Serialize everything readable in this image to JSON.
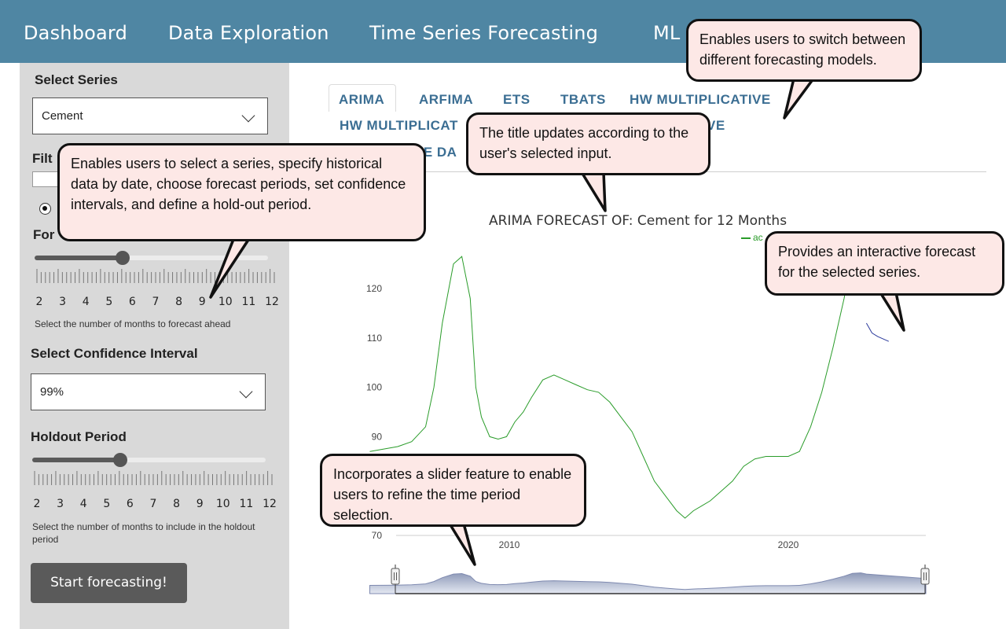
{
  "navbar": {
    "items": [
      {
        "label": "Dashboard"
      },
      {
        "label": "Data Exploration"
      },
      {
        "label": "Time Series Forecasting"
      },
      {
        "label": "ML"
      }
    ]
  },
  "sidebar": {
    "series_label": "Select Series",
    "series_value": "Cement",
    "filter_label_partial": "Filt",
    "forecast_label_partial": "For",
    "forecast_slider": {
      "ticks": [
        "2",
        "3",
        "4",
        "5",
        "6",
        "7",
        "8",
        "9",
        "10",
        "11",
        "12"
      ],
      "value": 6,
      "min": 2,
      "max": 12,
      "help": "Select the number of months to forecast ahead"
    },
    "confidence_label": "Select Confidence Interval",
    "confidence_value": "99%",
    "holdout_label": "Holdout Period",
    "holdout_slider": {
      "ticks": [
        "2",
        "3",
        "4",
        "5",
        "6",
        "7",
        "8",
        "9",
        "10",
        "11",
        "12"
      ],
      "value": 6,
      "min": 2,
      "max": 12,
      "help": "Select the number of months to include in the holdout period"
    },
    "start_button": "Start forecasting!"
  },
  "tabs": {
    "row1": [
      "ARIMA",
      "ARFIMA",
      "ETS",
      "TBATS",
      "HW MULTIPLICATIVE"
    ],
    "row2_left_partial": "HW MULTIPLICAT",
    "row2_right_partial": "VE",
    "row3_partial": "VE DA",
    "active": "ARIMA"
  },
  "chart_data": {
    "type": "line",
    "title": "ARIMA FORECAST OF: Cement for 12 Months",
    "legend_partial": "ac",
    "ylim": [
      70,
      130
    ],
    "yticks": [
      "70",
      "90",
      "100",
      "110",
      "120"
    ],
    "xticks": [
      "2010",
      "2020"
    ],
    "series": [
      {
        "name": "actual",
        "color": "#2a9c2a",
        "x": [
          2005.0,
          2005.5,
          2006.0,
          2006.5,
          2007.0,
          2007.3,
          2007.6,
          2008.0,
          2008.3,
          2008.6,
          2008.8,
          2009.0,
          2009.3,
          2009.6,
          2009.9,
          2010.2,
          2010.5,
          2010.8,
          2011.2,
          2011.6,
          2012.0,
          2012.4,
          2012.8,
          2013.2,
          2013.6,
          2014.0,
          2014.4,
          2014.8,
          2015.2,
          2015.6,
          2016.0,
          2016.3,
          2016.6,
          2016.9,
          2017.2,
          2017.6,
          2018.0,
          2018.4,
          2018.8,
          2019.2,
          2019.6,
          2020.0,
          2020.4,
          2020.8,
          2021.2,
          2021.6,
          2022.0,
          2022.3,
          2022.6,
          2022.8
        ],
        "values": [
          87,
          87.5,
          88,
          89,
          92,
          100,
          113,
          125,
          126.5,
          118,
          100,
          94,
          90,
          89.5,
          90,
          93,
          95,
          98,
          101.5,
          102.5,
          101.5,
          100.5,
          99.5,
          99,
          97,
          94,
          91,
          86,
          81,
          78,
          75,
          73.5,
          75,
          76,
          77,
          79,
          81,
          84,
          85.5,
          86,
          86,
          86,
          87,
          92,
          99,
          108,
          118,
          127,
          129,
          125
        ]
      },
      {
        "name": "forecast",
        "color": "#2b3a9c",
        "x": [
          2022.8,
          2023.0,
          2023.2,
          2023.4,
          2023.6
        ],
        "values": [
          113,
          111,
          110.3,
          109.8,
          109.3
        ]
      }
    ]
  },
  "navigator": {
    "label": "time range slider"
  },
  "callouts": {
    "tabs": "Enables users to switch between different forecasting models.",
    "title": "The title updates according to the user's selected input.",
    "inputs": "Enables users to select a series, specify historical data by date, choose forecast periods, set confidence intervals, and define a hold-out period.",
    "chart": "Provides an interactive forecast for the selected series.",
    "slider": "Incorporates a slider feature to enable users to refine the time period selection."
  }
}
